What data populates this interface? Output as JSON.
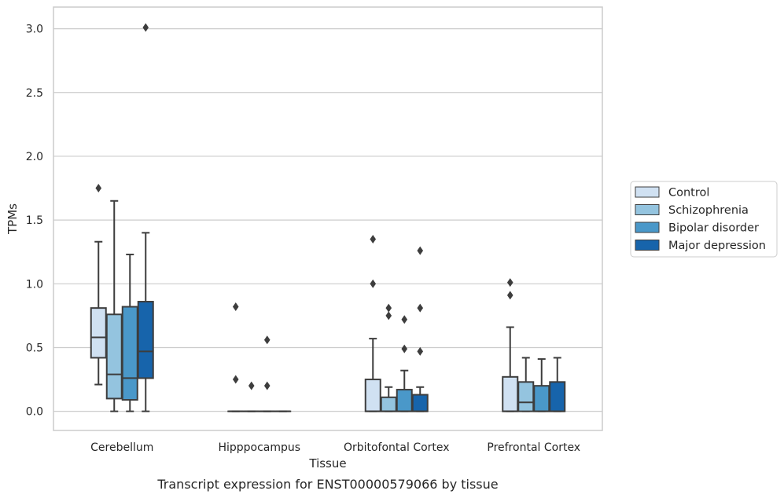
{
  "caption": "Transcript expression for ENST00000579066 by tissue",
  "colors": {
    "Control": "#d0e1f2",
    "Schizophrenia": "#94c4df",
    "Bipolar disorder": "#4a98c9",
    "Major depression": "#1764ab",
    "grid": "#cccccc",
    "frame": "#cccccc",
    "line": "#3d3d3d"
  },
  "chart_data": {
    "type": "box",
    "title": "",
    "xlabel": "Tissue",
    "ylabel": "TPMs",
    "ylim": [
      -0.15,
      3.17
    ],
    "yticks": [
      "0.0",
      "0.5",
      "1.0",
      "1.5",
      "2.0",
      "2.5",
      "3.0"
    ],
    "grid": "horizontal",
    "legend_position": "right",
    "categories": [
      "Cerebellum",
      "Hipppocampus",
      "Orbitofontal Cortex",
      "Prefrontal Cortex"
    ],
    "series": [
      {
        "name": "Control",
        "boxes": [
          {
            "whislo": 0.21,
            "q1": 0.42,
            "med": 0.58,
            "q3": 0.81,
            "whishi": 1.33,
            "fliers": [
              1.75
            ]
          },
          {
            "whislo": 0.0,
            "q1": 0.0,
            "med": 0.0,
            "q3": 0.0,
            "whishi": 0.0,
            "fliers": [
              0.82,
              0.25
            ]
          },
          {
            "whislo": 0.0,
            "q1": 0.0,
            "med": 0.0,
            "q3": 0.25,
            "whishi": 0.57,
            "fliers": [
              1.35,
              1.0
            ]
          },
          {
            "whislo": 0.0,
            "q1": 0.0,
            "med": 0.0,
            "q3": 0.27,
            "whishi": 0.66,
            "fliers": [
              1.01,
              0.91
            ]
          }
        ]
      },
      {
        "name": "Schizophrenia",
        "boxes": [
          {
            "whislo": 0.0,
            "q1": 0.1,
            "med": 0.29,
            "q3": 0.76,
            "whishi": 1.65,
            "fliers": []
          },
          {
            "whislo": 0.0,
            "q1": 0.0,
            "med": 0.0,
            "q3": 0.0,
            "whishi": 0.0,
            "fliers": [
              0.2
            ]
          },
          {
            "whislo": 0.0,
            "q1": 0.0,
            "med": 0.0,
            "q3": 0.11,
            "whishi": 0.19,
            "fliers": [
              0.81,
              0.75
            ]
          },
          {
            "whislo": 0.0,
            "q1": 0.0,
            "med": 0.07,
            "q3": 0.23,
            "whishi": 0.42,
            "fliers": []
          }
        ]
      },
      {
        "name": "Bipolar disorder",
        "boxes": [
          {
            "whislo": 0.0,
            "q1": 0.09,
            "med": 0.26,
            "q3": 0.82,
            "whishi": 1.23,
            "fliers": []
          },
          {
            "whislo": 0.0,
            "q1": 0.0,
            "med": 0.0,
            "q3": 0.0,
            "whishi": 0.0,
            "fliers": [
              0.56,
              0.2
            ]
          },
          {
            "whislo": 0.0,
            "q1": 0.0,
            "med": 0.0,
            "q3": 0.17,
            "whishi": 0.32,
            "fliers": [
              0.72,
              0.49
            ]
          },
          {
            "whislo": 0.0,
            "q1": 0.0,
            "med": 0.0,
            "q3": 0.2,
            "whishi": 0.41,
            "fliers": []
          }
        ]
      },
      {
        "name": "Major depression",
        "boxes": [
          {
            "whislo": 0.0,
            "q1": 0.26,
            "med": 0.47,
            "q3": 0.86,
            "whishi": 1.4,
            "fliers": [
              3.01
            ]
          },
          {
            "whislo": 0.0,
            "q1": 0.0,
            "med": 0.0,
            "q3": 0.0,
            "whishi": 0.0,
            "fliers": []
          },
          {
            "whislo": 0.0,
            "q1": 0.0,
            "med": 0.0,
            "q3": 0.13,
            "whishi": 0.19,
            "fliers": [
              1.26,
              0.81,
              0.47
            ]
          },
          {
            "whislo": 0.0,
            "q1": 0.0,
            "med": 0.0,
            "q3": 0.23,
            "whishi": 0.42,
            "fliers": []
          }
        ]
      }
    ]
  }
}
